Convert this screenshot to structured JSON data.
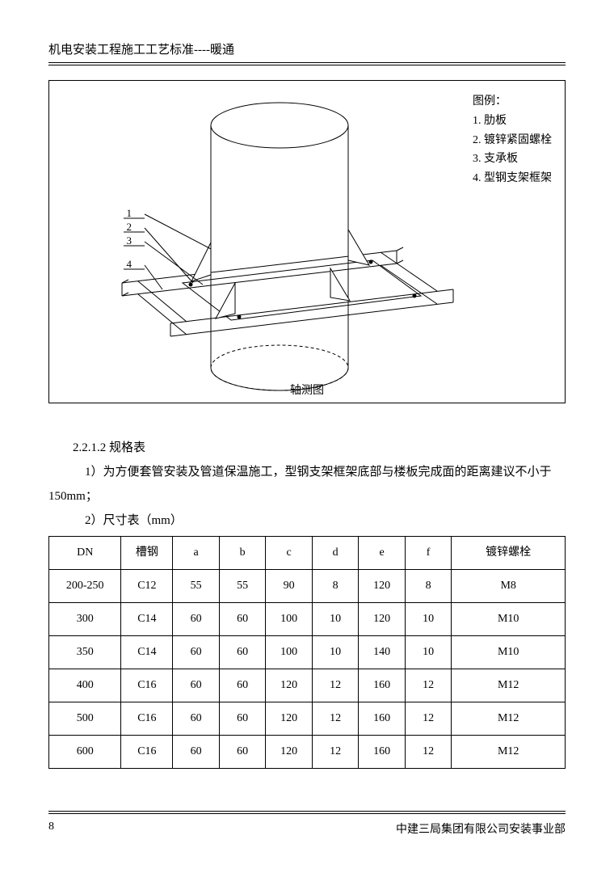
{
  "header": {
    "title": "机电安装工程施工工艺标准----暖通"
  },
  "figure": {
    "caption": "轴测图",
    "legend_title": "图例：",
    "legend_items": [
      "1. 肋板",
      "2. 镀锌紧固螺栓",
      "3. 支承板",
      "4. 型钢支架框架"
    ],
    "callout_labels": [
      "1",
      "2",
      "3",
      "4"
    ],
    "stroke": "#000000",
    "stroke_width": 1,
    "fill": "#ffffff"
  },
  "section": {
    "heading": "2.2.1.2 规格表",
    "note1": "1）为方便套管安装及管道保温施工，型钢支架框架底部与楼板完成面的距离建议不小于 150mm；",
    "note2": "2）尺寸表（mm）"
  },
  "table": {
    "columns": [
      "DN",
      "槽钢",
      "a",
      "b",
      "c",
      "d",
      "e",
      "f",
      "镀锌螺栓"
    ],
    "rows": [
      [
        "200-250",
        "C12",
        "55",
        "55",
        "90",
        "8",
        "120",
        "8",
        "M8"
      ],
      [
        "300",
        "C14",
        "60",
        "60",
        "100",
        "10",
        "120",
        "10",
        "M10"
      ],
      [
        "350",
        "C14",
        "60",
        "60",
        "100",
        "10",
        "140",
        "10",
        "M10"
      ],
      [
        "400",
        "C16",
        "60",
        "60",
        "120",
        "12",
        "160",
        "12",
        "M12"
      ],
      [
        "500",
        "C16",
        "60",
        "60",
        "120",
        "12",
        "160",
        "12",
        "M12"
      ],
      [
        "600",
        "C16",
        "60",
        "60",
        "120",
        "12",
        "160",
        "12",
        "M12"
      ]
    ],
    "col_widths_pct": [
      14,
      10,
      9,
      9,
      9,
      9,
      9,
      9,
      22
    ]
  },
  "footer": {
    "page_number": "8",
    "org": "中建三局集团有限公司安装事业部"
  }
}
